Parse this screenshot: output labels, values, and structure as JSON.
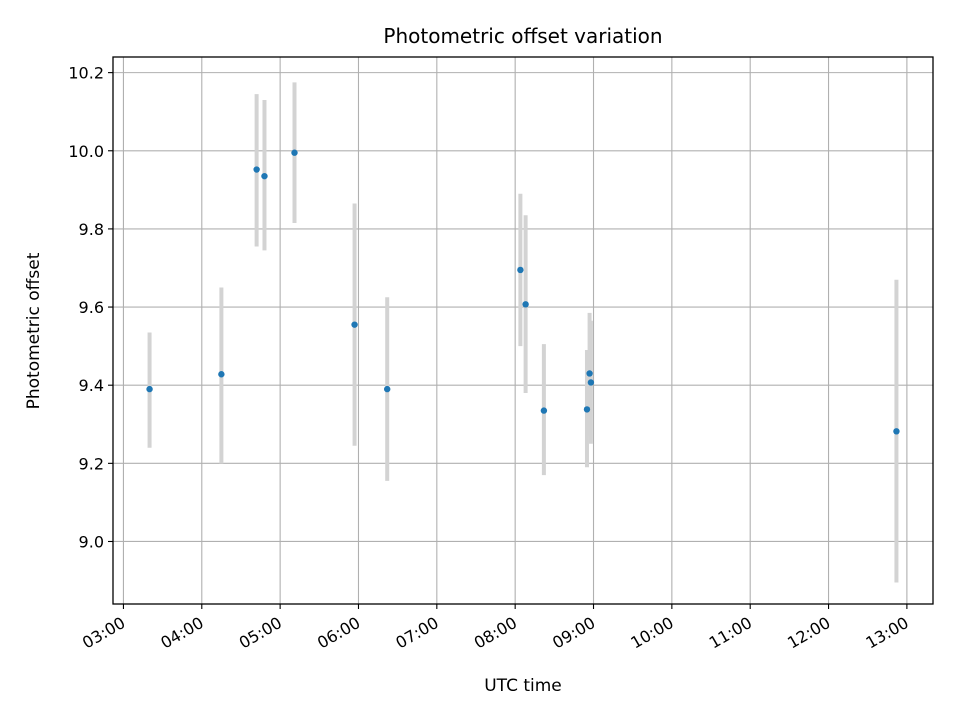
{
  "chart_data": {
    "type": "scatter",
    "title": "Photometric offset variation",
    "xlabel": "UTC time",
    "ylabel": "Photometric offset",
    "x_ticks": [
      "03:00",
      "04:00",
      "05:00",
      "06:00",
      "07:00",
      "08:00",
      "09:00",
      "10:00",
      "11:00",
      "12:00",
      "13:00"
    ],
    "y_ticks": [
      "9.0",
      "9.2",
      "9.4",
      "9.6",
      "9.8",
      "10.0",
      "10.2"
    ],
    "xlim": [
      "02:52",
      "13:20"
    ],
    "ylim": [
      8.84,
      10.24
    ],
    "grid": true,
    "marker_color": "#1f77b4",
    "errorbar_color": "#d3d3d3",
    "points": [
      {
        "time": "03:20",
        "y": 9.39,
        "low": 9.24,
        "high": 9.535
      },
      {
        "time": "04:15",
        "y": 9.428,
        "low": 9.2,
        "high": 9.65
      },
      {
        "time": "04:42",
        "y": 9.952,
        "low": 9.755,
        "high": 10.145
      },
      {
        "time": "04:48",
        "y": 9.935,
        "low": 9.745,
        "high": 10.13
      },
      {
        "time": "05:11",
        "y": 9.995,
        "low": 9.815,
        "high": 10.175
      },
      {
        "time": "05:57",
        "y": 9.555,
        "low": 9.245,
        "high": 9.865
      },
      {
        "time": "06:22",
        "y": 9.39,
        "low": 9.155,
        "high": 9.625
      },
      {
        "time": "08:04",
        "y": 9.695,
        "low": 9.5,
        "high": 9.89
      },
      {
        "time": "08:08",
        "y": 9.607,
        "low": 9.38,
        "high": 9.835
      },
      {
        "time": "08:22",
        "y": 9.335,
        "low": 9.17,
        "high": 9.505
      },
      {
        "time": "08:55",
        "y": 9.338,
        "low": 9.19,
        "high": 9.49
      },
      {
        "time": "08:57",
        "y": 9.43,
        "low": 9.27,
        "high": 9.585
      },
      {
        "time": "08:58",
        "y": 9.407,
        "low": 9.25,
        "high": 9.565
      },
      {
        "time": "12:52",
        "y": 9.282,
        "low": 8.895,
        "high": 9.67
      }
    ]
  }
}
